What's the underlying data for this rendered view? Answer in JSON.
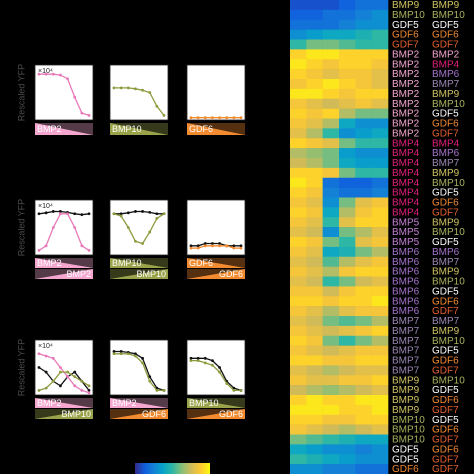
{
  "figure": {
    "colormap": [
      "#352a87",
      "#0f5cdd",
      "#1481d6",
      "#06a4ca",
      "#2eb7a4",
      "#87bf77",
      "#d1bb59",
      "#fec832",
      "#f9fb0e"
    ],
    "ligand_colors": {
      "BMP2": "#f4a6cf",
      "BMP4": "#e2207c",
      "BMP5": "#c580d4",
      "BMP6": "#a474cc",
      "BMP7": "#9c88b4",
      "BMP9": "#cfc463",
      "BMP10": "#aab25c",
      "GDF5": "#ffffff",
      "GDF6": "#f28a30",
      "GDF7": "#e4602f"
    },
    "panel_rows": [
      {
        "y_label": "Rescaled YFP",
        "scale": "×10⁴",
        "ylim": [
          0,
          1.2
        ],
        "panels": [
          {
            "series": [
              {
                "color": "#e879b8",
                "values": [
                  1,
                  1,
                  1,
                  0.98,
                  0.9,
                  0.5,
                  0.15,
                  0.1
                ]
              }
            ],
            "ramps": [
              {
                "label": "BMP2",
                "color": "#f4a6cf",
                "direction": "down"
              }
            ]
          },
          {
            "series": [
              {
                "color": "#8f9a3e",
                "values": [
                  0.7,
                  0.7,
                  0.7,
                  0.68,
                  0.65,
                  0.6,
                  0.3,
                  0.1
                ]
              }
            ],
            "ramps": [
              {
                "label": "BMP10",
                "color": "#9aa34a",
                "direction": "down"
              }
            ]
          },
          {
            "series": [
              {
                "color": "#f28a30",
                "values": [
                  0.05,
                  0.05,
                  0.05,
                  0.05,
                  0.05,
                  0.05,
                  0.05,
                  0.05
                ]
              }
            ],
            "ramps": [
              {
                "label": "GDF6",
                "color": "#f28a30",
                "direction": "down"
              }
            ]
          }
        ]
      },
      {
        "y_label": "Rescaled YFP",
        "scale": "×10⁴",
        "ylim": [
          0,
          1.2
        ],
        "panels": [
          {
            "series": [
              {
                "color": "#111111",
                "values": [
                  0.9,
                  0.92,
                  0.95,
                  0.95,
                  0.93,
                  0.9,
                  0.88,
                  0.9
                ]
              },
              {
                "color": "#e879b8",
                "values": [
                  0.1,
                  0.2,
                  0.6,
                  0.9,
                  0.9,
                  0.6,
                  0.2,
                  0.1
                ]
              }
            ],
            "ramps": [
              {
                "label": "BMP2",
                "color": "#f4a6cf",
                "direction": "down"
              },
              {
                "label": "BMP2",
                "color": "#f4a6cf",
                "direction": "up"
              }
            ]
          },
          {
            "series": [
              {
                "color": "#111111",
                "values": [
                  0.9,
                  0.9,
                  0.92,
                  0.95,
                  0.95,
                  0.93,
                  0.9,
                  0.9
                ]
              },
              {
                "color": "#8f9a3e",
                "values": [
                  0.9,
                  0.85,
                  0.6,
                  0.3,
                  0.25,
                  0.5,
                  0.8,
                  0.9
                ]
              }
            ],
            "ramps": [
              {
                "label": "BMP10",
                "color": "#9aa34a",
                "direction": "down"
              },
              {
                "label": "BMP10",
                "color": "#9aa34a",
                "direction": "up"
              }
            ]
          },
          {
            "series": [
              {
                "color": "#111111",
                "values": [
                  0.2,
                  0.2,
                  0.25,
                  0.25,
                  0.25,
                  0.2,
                  0.2,
                  0.2
                ]
              },
              {
                "color": "#f28a30",
                "values": [
                  0.15,
                  0.15,
                  0.2,
                  0.2,
                  0.2,
                  0.2,
                  0.15,
                  0.15
                ]
              }
            ],
            "ramps": [
              {
                "label": "GDF6",
                "color": "#f28a30",
                "direction": "down"
              },
              {
                "label": "GDF6",
                "color": "#f28a30",
                "direction": "up"
              }
            ]
          }
        ]
      },
      {
        "y_label": "Rescaled YFP",
        "scale": "×10⁴",
        "ylim": [
          0,
          1.2
        ],
        "panels": [
          {
            "series": [
              {
                "color": "#111111",
                "values": [
                  0.6,
                  0.5,
                  0.3,
                  0.2,
                  0.4,
                  0.5,
                  0.3,
                  0.1
                ]
              },
              {
                "color": "#e879b8",
                "values": [
                  0.9,
                  0.85,
                  0.8,
                  0.6,
                  0.4,
                  0.2,
                  0.1,
                  0.05
                ]
              },
              {
                "color": "#8f9a3e",
                "values": [
                  0.1,
                  0.15,
                  0.3,
                  0.5,
                  0.5,
                  0.4,
                  0.3,
                  0.2
                ]
              }
            ],
            "ramps": [
              {
                "label": "BMP2",
                "color": "#f4a6cf",
                "direction": "down"
              },
              {
                "label": "BMP10",
                "color": "#9aa34a",
                "direction": "up"
              }
            ]
          },
          {
            "series": [
              {
                "color": "#111111",
                "values": [
                  0.95,
                  0.95,
                  0.93,
                  0.9,
                  0.8,
                  0.4,
                  0.15,
                  0.1
                ]
              },
              {
                "color": "#8f9a3e",
                "values": [
                  0.9,
                  0.9,
                  0.9,
                  0.85,
                  0.7,
                  0.3,
                  0.1,
                  0.1
                ]
              }
            ],
            "ramps": [
              {
                "label": "BMP2",
                "color": "#f4a6cf",
                "direction": "down"
              },
              {
                "label": "GDF6",
                "color": "#f28a30",
                "direction": "up"
              }
            ]
          },
          {
            "series": [
              {
                "color": "#111111",
                "values": [
                  0.8,
                  0.8,
                  0.8,
                  0.75,
                  0.6,
                  0.3,
                  0.15,
                  0.1
                ]
              },
              {
                "color": "#8f9a3e",
                "values": [
                  0.75,
                  0.75,
                  0.7,
                  0.65,
                  0.5,
                  0.25,
                  0.1,
                  0.1
                ]
              }
            ],
            "ramps": [
              {
                "label": "BMP10",
                "color": "#9aa34a",
                "direction": "down"
              },
              {
                "label": "GDF6",
                "color": "#f28a30",
                "direction": "up"
              }
            ]
          }
        ]
      }
    ],
    "heatmap": {
      "rows": [
        {
          "pair": [
            "BMP9",
            "BMP9"
          ],
          "values": [
            0.1,
            0.1,
            0.1,
            0.15,
            0.2,
            0.2
          ]
        },
        {
          "pair": [
            "BMP10",
            "BMP10"
          ],
          "values": [
            0.15,
            0.15,
            0.2,
            0.2,
            0.25,
            0.3
          ]
        },
        {
          "pair": [
            "GDF5",
            "GDF5"
          ],
          "values": [
            0.2,
            0.2,
            0.2,
            0.25,
            0.3,
            0.3
          ]
        },
        {
          "pair": [
            "GDF6",
            "GDF6"
          ],
          "values": [
            0.3,
            0.35,
            0.4,
            0.4,
            0.45,
            0.5
          ]
        },
        {
          "pair": [
            "GDF7",
            "GDF7"
          ],
          "values": [
            0.5,
            0.6,
            0.6,
            0.55,
            0.5,
            0.5
          ]
        },
        {
          "pair": [
            "BMP2",
            "BMP2"
          ],
          "values": [
            0.9,
            0.95,
            0.95,
            0.9,
            0.9,
            0.9
          ]
        },
        {
          "pair": [
            "BMP2",
            "BMP4"
          ],
          "values": [
            0.95,
            0.9,
            0.85,
            0.9,
            0.9,
            0.85
          ]
        },
        {
          "pair": [
            "BMP2",
            "BMP6"
          ],
          "values": [
            0.9,
            0.85,
            0.8,
            0.85,
            0.85,
            0.8
          ]
        },
        {
          "pair": [
            "BMP2",
            "BMP7"
          ],
          "values": [
            0.85,
            0.9,
            0.95,
            0.9,
            0.85,
            0.8
          ]
        },
        {
          "pair": [
            "BMP2",
            "BMP9"
          ],
          "values": [
            0.95,
            0.95,
            0.9,
            0.85,
            0.9,
            0.9
          ]
        },
        {
          "pair": [
            "BMP2",
            "BMP10"
          ],
          "values": [
            0.85,
            0.8,
            0.75,
            0.8,
            0.85,
            0.8
          ]
        },
        {
          "pair": [
            "BMP2",
            "GDF5"
          ],
          "values": [
            0.9,
            0.85,
            0.9,
            0.7,
            0.6,
            0.6
          ]
        },
        {
          "pair": [
            "BMP2",
            "GDF6"
          ],
          "values": [
            0.85,
            0.8,
            0.7,
            0.4,
            0.3,
            0.3
          ]
        },
        {
          "pair": [
            "BMP2",
            "GDF7"
          ],
          "values": [
            0.8,
            0.7,
            0.5,
            0.3,
            0.35,
            0.4
          ]
        },
        {
          "pair": [
            "BMP4",
            "BMP4"
          ],
          "values": [
            0.9,
            0.85,
            0.8,
            0.6,
            0.5,
            0.5
          ]
        },
        {
          "pair": [
            "BMP4",
            "BMP6"
          ],
          "values": [
            0.7,
            0.65,
            0.6,
            0.35,
            0.3,
            0.3
          ]
        },
        {
          "pair": [
            "BMP4",
            "BMP7"
          ],
          "values": [
            0.75,
            0.7,
            0.6,
            0.4,
            0.35,
            0.35
          ]
        },
        {
          "pair": [
            "BMP4",
            "BMP9"
          ],
          "values": [
            0.9,
            0.9,
            0.85,
            0.6,
            0.5,
            0.5
          ]
        },
        {
          "pair": [
            "BMP4",
            "BMP10"
          ],
          "values": [
            0.95,
            0.9,
            0.2,
            0.15,
            0.15,
            0.2
          ]
        },
        {
          "pair": [
            "BMP4",
            "GDF5"
          ],
          "values": [
            0.9,
            0.85,
            0.25,
            0.2,
            0.2,
            0.25
          ]
        },
        {
          "pair": [
            "BMP4",
            "GDF6"
          ],
          "values": [
            0.85,
            0.8,
            0.3,
            0.6,
            0.8,
            0.85
          ]
        },
        {
          "pair": [
            "BMP4",
            "GDF7"
          ],
          "values": [
            0.9,
            0.85,
            0.4,
            0.7,
            0.85,
            0.9
          ]
        },
        {
          "pair": [
            "BMP5",
            "BMP9"
          ],
          "values": [
            0.85,
            0.8,
            0.5,
            0.8,
            0.9,
            0.9
          ]
        },
        {
          "pair": [
            "BMP5",
            "BMP10"
          ],
          "values": [
            0.8,
            0.75,
            0.3,
            0.6,
            0.7,
            0.8
          ]
        },
        {
          "pair": [
            "BMP5",
            "GDF5"
          ],
          "values": [
            0.9,
            0.85,
            0.6,
            0.5,
            0.8,
            0.85
          ]
        },
        {
          "pair": [
            "BMP6",
            "BMP6"
          ],
          "values": [
            0.85,
            0.8,
            0.4,
            0.45,
            0.6,
            0.7
          ]
        },
        {
          "pair": [
            "BMP6",
            "BMP7"
          ],
          "values": [
            0.8,
            0.75,
            0.55,
            0.7,
            0.8,
            0.85
          ]
        },
        {
          "pair": [
            "BMP6",
            "BMP9"
          ],
          "values": [
            0.85,
            0.8,
            0.7,
            0.85,
            0.9,
            0.9
          ]
        },
        {
          "pair": [
            "BMP6",
            "BMP10"
          ],
          "values": [
            0.8,
            0.75,
            0.5,
            0.6,
            0.75,
            0.8
          ]
        },
        {
          "pair": [
            "BMP6",
            "GDF5"
          ],
          "values": [
            0.85,
            0.85,
            0.75,
            0.85,
            0.9,
            0.9
          ]
        },
        {
          "pair": [
            "BMP6",
            "GDF6"
          ],
          "values": [
            0.9,
            0.9,
            0.85,
            0.9,
            0.9,
            0.95
          ]
        },
        {
          "pair": [
            "BMP6",
            "GDF7"
          ],
          "values": [
            0.85,
            0.8,
            0.7,
            0.8,
            0.85,
            0.85
          ]
        },
        {
          "pair": [
            "BMP7",
            "BMP7"
          ],
          "values": [
            0.8,
            0.75,
            0.6,
            0.55,
            0.6,
            0.7
          ]
        },
        {
          "pair": [
            "BMP7",
            "BMP9"
          ],
          "values": [
            0.85,
            0.8,
            0.75,
            0.8,
            0.85,
            0.9
          ]
        },
        {
          "pair": [
            "BMP7",
            "BMP10"
          ],
          "values": [
            0.9,
            0.85,
            0.6,
            0.5,
            0.6,
            0.7
          ]
        },
        {
          "pair": [
            "BMP7",
            "GDF5"
          ],
          "values": [
            0.85,
            0.8,
            0.75,
            0.8,
            0.85,
            0.85
          ]
        },
        {
          "pair": [
            "BMP7",
            "GDF6"
          ],
          "values": [
            0.9,
            0.9,
            0.85,
            0.85,
            0.9,
            0.9
          ]
        },
        {
          "pair": [
            "BMP7",
            "GDF7"
          ],
          "values": [
            0.8,
            0.75,
            0.7,
            0.75,
            0.8,
            0.8
          ]
        },
        {
          "pair": [
            "BMP9",
            "BMP10"
          ],
          "values": [
            0.85,
            0.8,
            0.8,
            0.85,
            0.85,
            0.9
          ]
        },
        {
          "pair": [
            "BMP9",
            "GDF5"
          ],
          "values": [
            0.75,
            0.7,
            0.65,
            0.7,
            0.75,
            0.8
          ]
        },
        {
          "pair": [
            "BMP9",
            "GDF6"
          ],
          "values": [
            0.9,
            0.95,
            0.9,
            0.9,
            0.95,
            0.95
          ]
        },
        {
          "pair": [
            "BMP9",
            "GDF7"
          ],
          "values": [
            0.95,
            0.95,
            0.95,
            0.9,
            0.9,
            0.95
          ]
        },
        {
          "pair": [
            "BMP10",
            "GDF5"
          ],
          "values": [
            0.9,
            0.9,
            0.85,
            0.85,
            0.9,
            0.9
          ]
        },
        {
          "pair": [
            "BMP10",
            "GDF6"
          ],
          "values": [
            0.85,
            0.8,
            0.75,
            0.7,
            0.75,
            0.8
          ]
        },
        {
          "pair": [
            "BMP10",
            "GDF7"
          ],
          "values": [
            0.6,
            0.55,
            0.5,
            0.45,
            0.4,
            0.4
          ]
        },
        {
          "pair": [
            "GDF5",
            "GDF6"
          ],
          "values": [
            0.4,
            0.35,
            0.3,
            0.3,
            0.25,
            0.3
          ]
        },
        {
          "pair": [
            "GDF5",
            "GDF7"
          ],
          "values": [
            0.5,
            0.45,
            0.4,
            0.35,
            0.3,
            0.3
          ]
        },
        {
          "pair": [
            "GDF6",
            "GDF7"
          ],
          "values": [
            0.3,
            0.3,
            0.25,
            0.25,
            0.2,
            0.2
          ]
        }
      ]
    }
  }
}
